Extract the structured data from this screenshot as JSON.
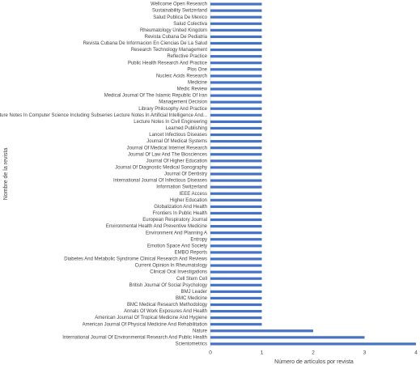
{
  "chart_data": {
    "type": "hbar",
    "x_label": "Número de artículos por revista",
    "y_label": "Nombre de la revista",
    "categories": [
      "Wellcome Open Research",
      "Sustainability Switzerland",
      "Salud Publica De Mexico",
      "Salud Colectiva",
      "Rheumatology United Kingdom",
      "Revista Cubana De Pediatria",
      "Revista Cubana De Informacion En Ciencias De La Salud",
      "Research Technology Management",
      "Reflective Practice",
      "Public Health Research And Practice",
      "Plos One",
      "Nucleic Acids Research",
      "Medicine",
      "Medic Review",
      "Medical Journal Of The Islamic Republic Of Iran",
      "Management Decision",
      "Library Philosophy And Practice",
      "Lecture Notes In Computer Science Including Subseries Lecture Notes In Artificial Intelligence And...",
      "Lecture Notes In Civil Engineering",
      "Learned Publishing",
      "Lancet Infectious Diseases",
      "Journal Of Medical Systems",
      "Journal Of Medical Internet Research",
      "Journal Of Law And The Biosciences",
      "Journal Of Higher Education",
      "Journal Of Diagnostic Medical Sonography",
      "Journal Of Dentistry",
      "International Journal Of Infectious Diseases",
      "Information Switzerland",
      "IEEE Access",
      "Higher Education",
      "Globalization And Health",
      "Frontiers In Public Health",
      "European Respiratory Journal",
      "Environmental Health And Preventive Medicine",
      "Environment And Planning A",
      "Entropy",
      "Emotion Space And Society",
      "EMBO Reports",
      "Diabetes And Metabolic Syndrome Clinical Research And Reviews",
      "Current Opinion In Rheumatology",
      "Clinical Oral Investigations",
      "Cell Stem Cell",
      "British Journal Of Social Psychology",
      "BMJ Leader",
      "BMC Medicine",
      "BMC Medical Research Methodology",
      "Annals Of Work Exposures And Health",
      "American Journal Of Tropical Medicine And Hygiene",
      "American Journal Of Physical Medicine And Rehabilitation",
      "Nature",
      "International Journal Of Environmental Research And Public Health",
      "Scientometrics"
    ],
    "values": [
      1,
      1,
      1,
      1,
      1,
      1,
      1,
      1,
      1,
      1,
      1,
      1,
      1,
      1,
      1,
      1,
      1,
      1,
      1,
      1,
      1,
      1,
      1,
      1,
      1,
      1,
      1,
      1,
      1,
      1,
      1,
      1,
      1,
      1,
      1,
      1,
      1,
      1,
      1,
      1,
      1,
      1,
      1,
      1,
      1,
      1,
      1,
      1,
      1,
      1,
      2,
      3,
      4
    ],
    "color": "#4472c4",
    "xlim": [
      0,
      4
    ],
    "xticks": [
      0,
      1,
      2,
      3,
      4
    ],
    "grid": false
  }
}
